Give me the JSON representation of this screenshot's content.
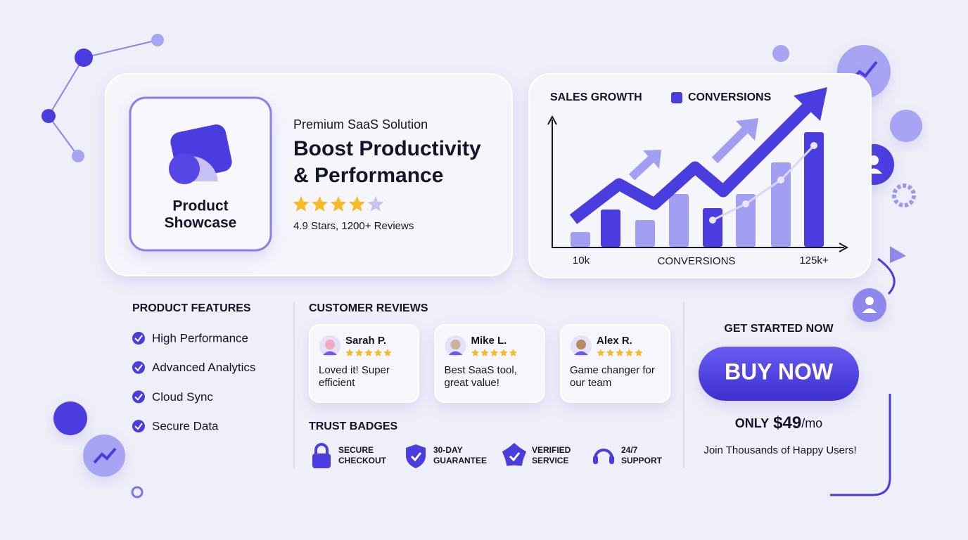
{
  "hero": {
    "icon_label_1": "Product",
    "icon_label_2": "Showcase",
    "kicker": "Premium SaaS Solution",
    "title_line_1": "Boost Productivity",
    "title_line_2": "& Performance",
    "rating_text": "4.9 Stars, 1200+ Reviews"
  },
  "sales_chart": {
    "title": "SALES GROWTH",
    "legend": "CONVERSIONS",
    "legend_color": "#4b3ce0",
    "x_start": "10k",
    "x_label": "CONVERSIONS",
    "x_end": "125k+",
    "values": [
      21,
      53,
      38,
      75,
      55,
      75,
      120,
      163
    ],
    "colors": [
      "#a49ef2",
      "#4b3ce0",
      "#a49ef2",
      "#a49ef2",
      "#4b3ce0",
      "#a49ef2",
      "#a49ef2",
      "#4b3ce0"
    ]
  },
  "features": {
    "heading": "PRODUCT FEATURES",
    "items": [
      "High Performance",
      "Advanced Analytics",
      "Cloud Sync",
      "Secure Data"
    ]
  },
  "reviews": {
    "heading": "CUSTOMER REVIEWS",
    "items": [
      {
        "name": "Sarah P.",
        "line_1": "Loved it! Super",
        "line_2": "efficient"
      },
      {
        "name": "Mike L.",
        "line_1": "Best SaaS tool,",
        "line_2": "great value!"
      },
      {
        "name": "Alex R.",
        "line_1": "Game changer for",
        "line_2": "our team"
      }
    ]
  },
  "trust_badges": {
    "heading": "TRUST BADGES",
    "items": [
      {
        "line_1": "SECURE",
        "line_2": "CHECKOUT"
      },
      {
        "line_1": "30-DAY",
        "line_2": "GUARANTEE"
      },
      {
        "line_1": "VERIFIED",
        "line_2": "SERVICE"
      },
      {
        "line_1": "24/7",
        "line_2": "SUPPORT"
      }
    ]
  },
  "cta": {
    "heading": "GET STARTED NOW",
    "button": "BUY NOW",
    "price_prefix": "ONLY",
    "price_amount": "$49",
    "price_suffix": "/mo",
    "tagline": "Join Thousands of Happy Users!"
  }
}
